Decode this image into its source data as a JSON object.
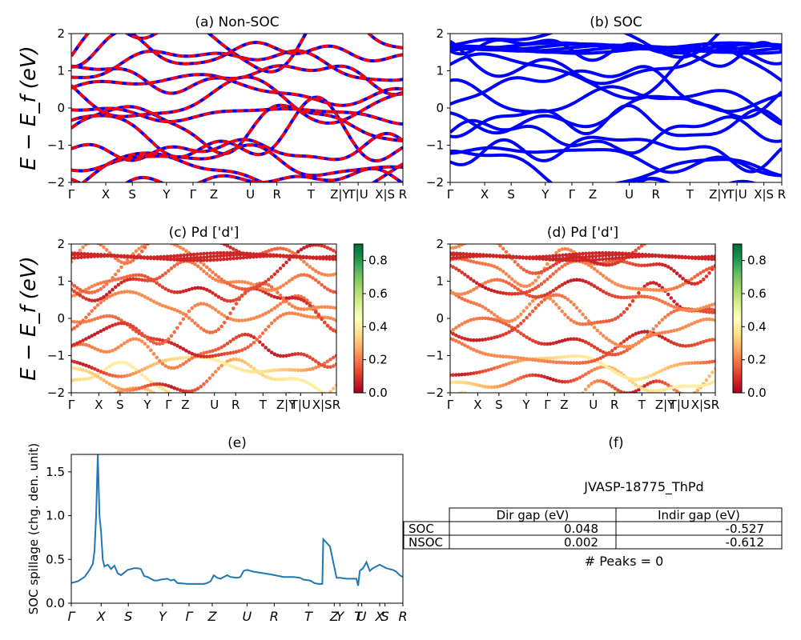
{
  "kpoint_labels": [
    "Γ",
    "X",
    "S",
    "Y",
    "Γ",
    "Z",
    "U",
    "R",
    "T",
    "Z|Y",
    "T|U",
    "X|S",
    "R"
  ],
  "kpoint_fracs": [
    0,
    0.104,
    0.184,
    0.287,
    0.367,
    0.43,
    0.54,
    0.62,
    0.723,
    0.81,
    0.865,
    0.946,
    1.0
  ],
  "energy_axis": {
    "label": "E − E_f (eV)",
    "ylim": [
      -2,
      2
    ],
    "ticks": [
      "−2",
      "−1",
      "0",
      "1",
      "2"
    ],
    "tick_values": [
      -2,
      -1,
      0,
      1,
      2
    ]
  },
  "panels": [
    {
      "id": "a",
      "title": "(a) Non-SOC",
      "type": "band-lines",
      "series_colors": [
        "#0000ff",
        "#ff0000"
      ]
    },
    {
      "id": "b",
      "title": "(b) SOC",
      "type": "band-lines",
      "series_colors": [
        "#0000ff"
      ]
    },
    {
      "id": "c",
      "title": "(c)  Pd ['d']",
      "type": "band-scatter",
      "colorbar": {
        "cmap": "RdYlGn",
        "range": [
          0.0,
          0.9
        ],
        "ticks": [
          "0.0",
          "0.2",
          "0.4",
          "0.6",
          "0.8"
        ],
        "tick_values": [
          0.0,
          0.2,
          0.4,
          0.6,
          0.8
        ]
      }
    },
    {
      "id": "d",
      "title": "(d) Pd ['d']",
      "type": "band-scatter",
      "colorbar": {
        "cmap": "RdYlGn",
        "range": [
          0.0,
          0.9
        ],
        "ticks": [
          "0.0",
          "0.2",
          "0.4",
          "0.6",
          "0.8"
        ],
        "tick_values": [
          0.0,
          0.2,
          0.4,
          0.6,
          0.8
        ]
      }
    }
  ],
  "chart_data": [
    {
      "type": "line",
      "title": "(e)",
      "ylabel": "SOC spillage (chg. den. unit)",
      "ylim": [
        0,
        1.7
      ],
      "yticks": [
        "0.0",
        "0.5",
        "1.0",
        "1.5"
      ],
      "ytick_values": [
        0,
        0.5,
        1.0,
        1.5
      ],
      "xtick_labels": [
        "Γ",
        "X",
        "S",
        "Y",
        "Γ",
        "Z",
        "U",
        "R",
        "T",
        "Z",
        "Y",
        "T",
        "U",
        "X",
        "S",
        "R"
      ],
      "xtick_fracs": [
        0,
        0.09,
        0.172,
        0.275,
        0.355,
        0.425,
        0.53,
        0.612,
        0.715,
        0.793,
        0.81,
        0.865,
        0.876,
        0.93,
        0.946,
        1.0
      ],
      "color": "#1f77b4",
      "x": [
        0,
        0.02,
        0.04,
        0.055,
        0.065,
        0.07,
        0.075,
        0.08,
        0.085,
        0.09,
        0.095,
        0.1,
        0.11,
        0.12,
        0.13,
        0.14,
        0.15,
        0.16,
        0.17,
        0.19,
        0.2,
        0.21,
        0.22,
        0.23,
        0.25,
        0.26,
        0.27,
        0.29,
        0.3,
        0.31,
        0.32,
        0.35,
        0.37,
        0.4,
        0.41,
        0.42,
        0.43,
        0.44,
        0.45,
        0.47,
        0.48,
        0.5,
        0.51,
        0.52,
        0.53,
        0.55,
        0.6,
        0.64,
        0.67,
        0.69,
        0.7,
        0.72,
        0.733,
        0.745,
        0.757,
        0.76,
        0.78,
        0.8,
        0.81,
        0.83,
        0.86,
        0.865,
        0.87,
        0.88,
        0.89,
        0.9,
        0.91,
        0.93,
        0.95,
        0.97,
        0.98,
        0.99,
        1.0
      ],
      "y": [
        0.23,
        0.25,
        0.3,
        0.38,
        0.45,
        0.6,
        1.0,
        1.7,
        1.0,
        0.8,
        0.5,
        0.42,
        0.44,
        0.39,
        0.43,
        0.34,
        0.32,
        0.35,
        0.38,
        0.4,
        0.4,
        0.39,
        0.31,
        0.3,
        0.26,
        0.26,
        0.27,
        0.28,
        0.26,
        0.27,
        0.23,
        0.22,
        0.22,
        0.22,
        0.23,
        0.25,
        0.32,
        0.29,
        0.28,
        0.32,
        0.3,
        0.29,
        0.3,
        0.37,
        0.38,
        0.36,
        0.33,
        0.3,
        0.3,
        0.29,
        0.27,
        0.26,
        0.23,
        0.22,
        0.22,
        0.73,
        0.65,
        0.29,
        0.29,
        0.28,
        0.28,
        0.2,
        0.37,
        0.4,
        0.47,
        0.37,
        0.4,
        0.44,
        0.4,
        0.38,
        0.36,
        0.32,
        0.3
      ]
    },
    {
      "type": "table",
      "title": "(f)",
      "caption": "JVASP-18775_ThPd",
      "columns": [
        "Dir gap (eV)",
        "Indir gap (eV)"
      ],
      "rows": [
        {
          "label": "SOC",
          "values": [
            "0.048",
            "-0.527"
          ]
        },
        {
          "label": "NSOC",
          "values": [
            "0.002",
            "-0.612"
          ]
        }
      ],
      "footer": "# Peaks = 0"
    }
  ]
}
